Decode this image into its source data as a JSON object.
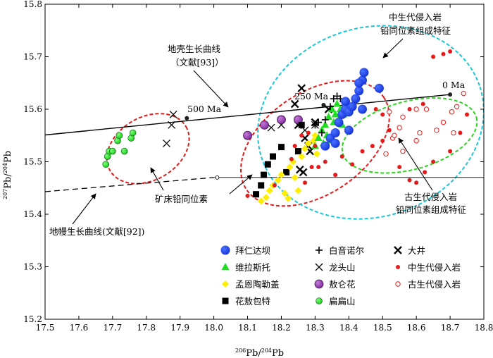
{
  "chart_data": {
    "type": "scatter",
    "xlabel_pre": "206",
    "xlabel_main": "Pb/",
    "xlabel_sup2": "204",
    "xlabel_post": "Pb",
    "ylabel_pre": "207",
    "ylabel_main": "Pb/",
    "ylabel_sup2": "204",
    "ylabel_post": "Pb",
    "xlim": [
      17.5,
      18.8
    ],
    "ylim": [
      15.2,
      15.8
    ],
    "xticks": [
      "17.5",
      "17.6",
      "17.7",
      "17.8",
      "17.9",
      "18.0",
      "18.1",
      "18.2",
      "18.3",
      "18.4",
      "18.5",
      "18.6",
      "18.7",
      "18.8"
    ],
    "yticks": [
      "15.2",
      "15.3",
      "15.4",
      "15.5",
      "15.6",
      "15.7",
      "15.8"
    ],
    "annotations": {
      "crust_curve": "地壳生长曲线",
      "crust_ref": "（文献[93]）",
      "mantle_curve": "地幔生长曲线(文献[92])",
      "ore_lead": "矿床铅同位素",
      "mesozoic_line1": "中生代侵入岩",
      "mesozoic_line2": "铅同位素组成特征",
      "paleozoic_line1": "古生代侵入岩",
      "paleozoic_line2": "铅同位素组成特征",
      "age_500": "500 Ma",
      "age_250": "250 Ma",
      "age_0": "0 Ma"
    },
    "curves": {
      "crust": [
        [
          17.5,
          15.551
        ],
        [
          18.7,
          15.628
        ]
      ],
      "crust_age_points": [
        [
          17.92,
          15.583
        ],
        [
          18.325,
          15.608
        ],
        [
          18.7,
          15.628
        ]
      ],
      "mantle_dashed": [
        [
          17.5,
          15.443
        ],
        [
          18.0,
          15.47
        ]
      ],
      "mantle_solid": [
        [
          18.0,
          15.47
        ],
        [
          18.8,
          15.47
        ]
      ],
      "mantle_point": [
        18.01,
        15.47
      ]
    },
    "ellipses": [
      {
        "name": "ellipse-old-group",
        "color": "#e21a1a",
        "cx": 17.805,
        "cy": 15.525,
        "rx": 0.13,
        "ry": 0.06,
        "tilt_deg": -30
      },
      {
        "name": "ellipse-ore-deposits",
        "color": "#e21a1a",
        "cx": 18.3,
        "cy": 15.535,
        "rx": 0.245,
        "ry": 0.097,
        "tilt_deg": -34
      },
      {
        "name": "ellipse-mesozoic",
        "color": "#19c8d8",
        "cx": 18.465,
        "cy": 15.575,
        "rx": 0.34,
        "ry": 0.18,
        "tilt_deg": -18
      },
      {
        "name": "ellipse-paleozoic",
        "color": "#2bd61f",
        "cx": 18.58,
        "cy": 15.55,
        "rx": 0.205,
        "ry": 0.065,
        "tilt_deg": -15
      }
    ],
    "legend": [
      {
        "label": "拜仁达坝",
        "marker": "circle",
        "color": "#1a3ee0"
      },
      {
        "label": "白音诺尔",
        "marker": "plus",
        "color": "#000000"
      },
      {
        "label": "大井",
        "marker": "xbold",
        "color": "#000000"
      },
      {
        "label": "维拉斯托",
        "marker": "triangle",
        "color": "#22dd22"
      },
      {
        "label": "龙头山",
        "marker": "x",
        "color": "#000000"
      },
      {
        "label": "中生代侵入岩",
        "marker": "smalldot",
        "color": "#e51a1a"
      },
      {
        "label": "孟恩陶勒盖",
        "marker": "diamond",
        "color": "#ffee00"
      },
      {
        "label": "敖仑花",
        "marker": "bigcircle",
        "color": "#9933bb"
      },
      {
        "label": "古生代侵入岩",
        "marker": "opencircle",
        "color": "#e51a1a"
      },
      {
        "label": "花敖包特",
        "marker": "square",
        "color": "#000000"
      },
      {
        "label": "扁扁山",
        "marker": "greencircle",
        "color": "#22dd22"
      }
    ],
    "series": [
      {
        "name": "扁扁山",
        "marker": "greencircle",
        "color": "#22dd22",
        "points": [
          [
            17.68,
            15.495
          ],
          [
            17.685,
            15.51
          ],
          [
            17.69,
            15.52
          ],
          [
            17.7,
            15.52
          ],
          [
            17.715,
            15.54
          ],
          [
            17.72,
            15.55
          ],
          [
            17.735,
            15.52
          ],
          [
            17.755,
            15.545
          ],
          [
            17.76,
            15.555
          ]
        ]
      },
      {
        "name": "龙头山",
        "marker": "x",
        "color": "#000000",
        "points": [
          [
            17.86,
            15.535
          ],
          [
            17.875,
            15.57
          ],
          [
            17.88,
            15.59
          ],
          [
            18.17,
            15.565
          ],
          [
            18.2,
            15.57
          ],
          [
            18.27,
            15.56
          ],
          [
            18.3,
            15.57
          ]
        ]
      },
      {
        "name": "大井",
        "marker": "xbold",
        "color": "#000000",
        "points": [
          [
            18.24,
            15.61
          ],
          [
            18.26,
            15.64
          ],
          [
            18.34,
            15.6
          ],
          [
            18.25,
            15.57
          ],
          [
            18.255,
            15.485
          ],
          [
            18.265,
            15.48
          ],
          [
            18.27,
            15.545
          ],
          [
            18.28,
            15.53
          ],
          [
            18.285,
            15.52
          ],
          [
            18.3,
            15.575
          ]
        ]
      },
      {
        "name": "敖仑花",
        "marker": "bigcircle",
        "color": "#9933bb",
        "points": [
          [
            18.1,
            15.55
          ],
          [
            18.15,
            15.57
          ],
          [
            18.2,
            15.58
          ],
          [
            18.25,
            15.58
          ]
        ]
      },
      {
        "name": "花敖包特",
        "marker": "square",
        "color": "#000000",
        "points": [
          [
            18.125,
            15.438
          ],
          [
            18.14,
            15.455
          ],
          [
            18.148,
            15.475
          ],
          [
            18.16,
            15.495
          ],
          [
            18.175,
            15.51
          ],
          [
            18.2,
            15.528
          ],
          [
            18.215,
            15.48
          ],
          [
            18.25,
            15.52
          ],
          [
            18.26,
            15.57
          ]
        ]
      },
      {
        "name": "孟恩陶勒盖",
        "marker": "diamond",
        "color": "#ffee00",
        "points": [
          [
            18.14,
            15.425
          ],
          [
            18.155,
            15.432
          ],
          [
            18.165,
            15.445
          ],
          [
            18.175,
            15.455
          ],
          [
            18.19,
            15.465
          ],
          [
            18.2,
            15.475
          ],
          [
            18.21,
            15.44
          ],
          [
            18.22,
            15.43
          ],
          [
            18.225,
            15.49
          ],
          [
            18.235,
            15.5
          ],
          [
            18.24,
            15.47
          ],
          [
            18.25,
            15.445
          ],
          [
            18.26,
            15.51
          ],
          [
            18.27,
            15.525
          ],
          [
            18.28,
            15.535
          ],
          [
            18.295,
            15.54
          ],
          [
            18.3,
            15.55
          ],
          [
            18.305,
            15.515
          ]
        ]
      },
      {
        "name": "维拉斯托",
        "marker": "triangle",
        "color": "#22dd22",
        "points": [
          [
            18.3,
            15.53
          ],
          [
            18.31,
            15.545
          ],
          [
            18.32,
            15.56
          ],
          [
            18.33,
            15.57
          ],
          [
            18.335,
            15.55
          ],
          [
            18.34,
            15.585
          ],
          [
            18.35,
            15.6
          ],
          [
            18.355,
            15.575
          ],
          [
            18.36,
            15.59
          ],
          [
            18.365,
            15.61
          ],
          [
            18.37,
            15.58
          ],
          [
            18.375,
            15.6
          ],
          [
            18.38,
            15.57
          ],
          [
            18.385,
            15.59
          ],
          [
            18.39,
            15.61
          ],
          [
            18.345,
            15.54
          ],
          [
            18.325,
            15.535
          ]
        ]
      },
      {
        "name": "白音诺尔",
        "marker": "plus",
        "color": "#000000",
        "points": [
          [
            18.3,
            15.57
          ],
          [
            18.31,
            15.575
          ],
          [
            18.32,
            15.555
          ],
          [
            18.33,
            15.58
          ],
          [
            18.345,
            15.605
          ],
          [
            18.355,
            15.62
          ],
          [
            18.365,
            15.625
          ],
          [
            18.375,
            15.62
          ]
        ]
      },
      {
        "name": "拜仁达坝",
        "marker": "circle",
        "color": "#1a3ee0",
        "points": [
          [
            18.33,
            15.53
          ],
          [
            18.345,
            15.545
          ],
          [
            18.36,
            15.555
          ],
          [
            18.37,
            15.575
          ],
          [
            18.38,
            15.59
          ],
          [
            18.39,
            15.6
          ],
          [
            18.4,
            15.595
          ],
          [
            18.41,
            15.605
          ],
          [
            18.39,
            15.615
          ],
          [
            18.42,
            15.62
          ],
          [
            18.43,
            15.635
          ],
          [
            18.44,
            15.655
          ],
          [
            18.445,
            15.67
          ],
          [
            18.43,
            15.65
          ],
          [
            18.49,
            15.64
          ],
          [
            18.44,
            15.6
          ],
          [
            18.4,
            15.56
          ],
          [
            18.36,
            15.535
          ]
        ]
      },
      {
        "name": "中生代侵入岩",
        "marker": "smalldot",
        "color": "#e51a1a",
        "points": [
          [
            18.1,
            15.435
          ],
          [
            18.18,
            15.455
          ],
          [
            18.27,
            15.46
          ],
          [
            18.29,
            15.49
          ],
          [
            18.33,
            15.5
          ],
          [
            18.36,
            15.475
          ],
          [
            18.38,
            15.51
          ],
          [
            18.41,
            15.495
          ],
          [
            18.23,
            15.505
          ],
          [
            18.24,
            15.53
          ],
          [
            18.26,
            15.55
          ],
          [
            18.28,
            15.555
          ],
          [
            18.3,
            15.53
          ],
          [
            18.31,
            15.49
          ],
          [
            18.44,
            15.52
          ],
          [
            18.47,
            15.53
          ],
          [
            18.5,
            15.54
          ],
          [
            18.52,
            15.56
          ],
          [
            18.5,
            15.59
          ],
          [
            18.48,
            15.6
          ],
          [
            18.55,
            15.49
          ],
          [
            18.58,
            15.465
          ],
          [
            18.6,
            15.46
          ],
          [
            18.625,
            15.48
          ],
          [
            18.65,
            15.5
          ],
          [
            18.7,
            15.52
          ],
          [
            18.73,
            15.555
          ],
          [
            18.75,
            15.59
          ],
          [
            18.58,
            15.6
          ],
          [
            18.62,
            15.61
          ],
          [
            18.65,
            15.7
          ],
          [
            18.68,
            15.705
          ],
          [
            18.7,
            15.71
          ]
        ]
      },
      {
        "name": "古生代侵入岩",
        "marker": "opencircle",
        "color": "#e51a1a",
        "points": [
          [
            18.51,
            15.515
          ],
          [
            18.53,
            15.545
          ],
          [
            18.55,
            15.565
          ],
          [
            18.56,
            15.52
          ],
          [
            18.56,
            15.585
          ],
          [
            18.52,
            15.595
          ],
          [
            18.6,
            15.54
          ],
          [
            18.6,
            15.6
          ],
          [
            18.61,
            15.555
          ],
          [
            18.63,
            15.6
          ],
          [
            18.66,
            15.56
          ],
          [
            18.68,
            15.575
          ],
          [
            18.71,
            15.555
          ],
          [
            18.72,
            15.605
          ],
          [
            18.74,
            15.63
          ],
          [
            18.705,
            15.595
          ],
          [
            18.535,
            15.55
          ]
        ]
      }
    ]
  }
}
